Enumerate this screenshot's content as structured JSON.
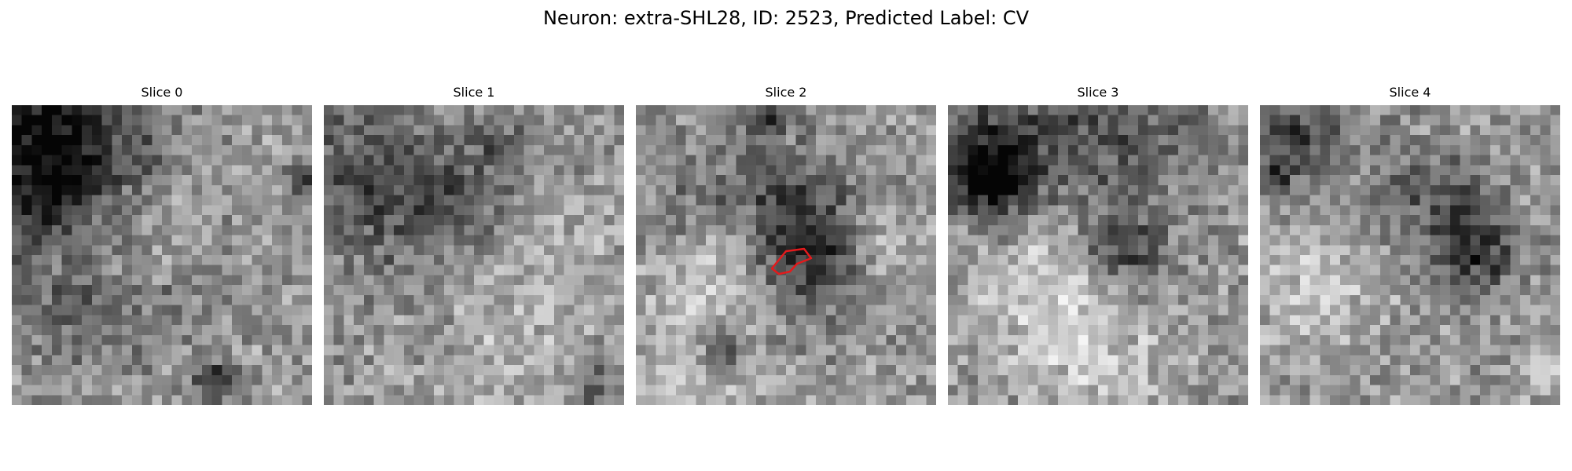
{
  "figure": {
    "title": "Neuron: extra-SHL28, ID: 2523, Predicted Label: CV"
  },
  "panels": [
    {
      "title": "Slice 0"
    },
    {
      "title": "Slice 1"
    },
    {
      "title": "Slice 2"
    },
    {
      "title": "Slice 3"
    },
    {
      "title": "Slice 4"
    }
  ],
  "colors": {
    "colormap": "grayscale",
    "roi_outline": "#e41a1c"
  }
}
